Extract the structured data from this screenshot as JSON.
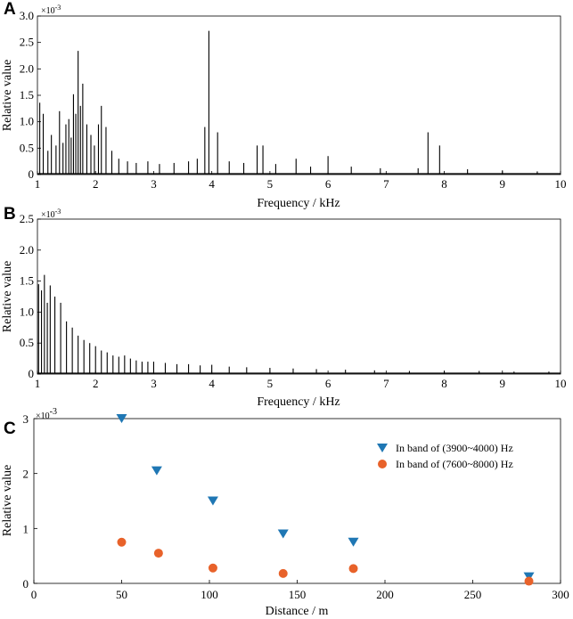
{
  "chart_data": [
    {
      "panel": "A",
      "type": "line",
      "xlabel": "Frequency / kHz",
      "ylabel": "Relative value",
      "y_exponent_label": "×10",
      "y_exponent_power": "-3",
      "xlim": [
        1,
        10
      ],
      "ylim": [
        0,
        3.0
      ],
      "xticks": [
        "1",
        "2",
        "3",
        "4",
        "5",
        "6",
        "7",
        "8",
        "9",
        "10"
      ],
      "yticks": [
        "0",
        "0.5",
        "1.0",
        "1.5",
        "2.0",
        "2.5",
        "3.0"
      ],
      "grid": false,
      "spikes": [
        {
          "f": 1.04,
          "v": 1.36
        },
        {
          "f": 1.1,
          "v": 1.15
        },
        {
          "f": 1.18,
          "v": 0.45
        },
        {
          "f": 1.24,
          "v": 0.75
        },
        {
          "f": 1.32,
          "v": 0.55
        },
        {
          "f": 1.38,
          "v": 1.2
        },
        {
          "f": 1.44,
          "v": 0.6
        },
        {
          "f": 1.49,
          "v": 0.95
        },
        {
          "f": 1.54,
          "v": 1.05
        },
        {
          "f": 1.58,
          "v": 0.7
        },
        {
          "f": 1.62,
          "v": 1.52
        },
        {
          "f": 1.66,
          "v": 1.15
        },
        {
          "f": 1.7,
          "v": 2.34
        },
        {
          "f": 1.74,
          "v": 1.3
        },
        {
          "f": 1.78,
          "v": 1.72
        },
        {
          "f": 1.85,
          "v": 0.95
        },
        {
          "f": 1.92,
          "v": 0.75
        },
        {
          "f": 1.98,
          "v": 0.55
        },
        {
          "f": 2.05,
          "v": 0.95
        },
        {
          "f": 2.1,
          "v": 1.3
        },
        {
          "f": 2.18,
          "v": 0.9
        },
        {
          "f": 2.28,
          "v": 0.45
        },
        {
          "f": 2.4,
          "v": 0.3
        },
        {
          "f": 2.55,
          "v": 0.25
        },
        {
          "f": 2.7,
          "v": 0.22
        },
        {
          "f": 2.9,
          "v": 0.25
        },
        {
          "f": 3.1,
          "v": 0.2
        },
        {
          "f": 3.35,
          "v": 0.22
        },
        {
          "f": 3.6,
          "v": 0.25
        },
        {
          "f": 3.75,
          "v": 0.3
        },
        {
          "f": 3.88,
          "v": 0.9
        },
        {
          "f": 3.95,
          "v": 2.72
        },
        {
          "f": 4.1,
          "v": 0.8
        },
        {
          "f": 4.3,
          "v": 0.25
        },
        {
          "f": 4.55,
          "v": 0.22
        },
        {
          "f": 4.78,
          "v": 0.55
        },
        {
          "f": 4.88,
          "v": 0.55
        },
        {
          "f": 5.1,
          "v": 0.2
        },
        {
          "f": 5.45,
          "v": 0.3
        },
        {
          "f": 5.7,
          "v": 0.15
        },
        {
          "f": 6.0,
          "v": 0.35
        },
        {
          "f": 6.4,
          "v": 0.15
        },
        {
          "f": 6.9,
          "v": 0.12
        },
        {
          "f": 7.55,
          "v": 0.12
        },
        {
          "f": 7.72,
          "v": 0.8
        },
        {
          "f": 7.92,
          "v": 0.55
        },
        {
          "f": 8.4,
          "v": 0.1
        },
        {
          "f": 9.0,
          "v": 0.08
        },
        {
          "f": 9.6,
          "v": 0.06
        }
      ]
    },
    {
      "panel": "B",
      "type": "line",
      "xlabel": "Frequency / kHz",
      "ylabel": "Relative value",
      "y_exponent_label": "×10",
      "y_exponent_power": "-3",
      "xlim": [
        1,
        10
      ],
      "ylim": [
        0,
        2.5
      ],
      "xticks": [
        "1",
        "2",
        "3",
        "4",
        "5",
        "6",
        "7",
        "8",
        "9",
        "10"
      ],
      "yticks": [
        "0",
        "0.5",
        "1.0",
        "1.5",
        "2.0",
        "2.5"
      ],
      "grid": false,
      "spikes": [
        {
          "f": 1.02,
          "v": 1.45
        },
        {
          "f": 1.07,
          "v": 1.35
        },
        {
          "f": 1.12,
          "v": 1.6
        },
        {
          "f": 1.17,
          "v": 1.15
        },
        {
          "f": 1.22,
          "v": 1.43
        },
        {
          "f": 1.3,
          "v": 1.25
        },
        {
          "f": 1.4,
          "v": 1.15
        },
        {
          "f": 1.5,
          "v": 0.85
        },
        {
          "f": 1.6,
          "v": 0.75
        },
        {
          "f": 1.7,
          "v": 0.62
        },
        {
          "f": 1.8,
          "v": 0.55
        },
        {
          "f": 1.9,
          "v": 0.5
        },
        {
          "f": 2.0,
          "v": 0.45
        },
        {
          "f": 2.1,
          "v": 0.38
        },
        {
          "f": 2.2,
          "v": 0.35
        },
        {
          "f": 2.3,
          "v": 0.3
        },
        {
          "f": 2.4,
          "v": 0.28
        },
        {
          "f": 2.5,
          "v": 0.3
        },
        {
          "f": 2.6,
          "v": 0.25
        },
        {
          "f": 2.7,
          "v": 0.22
        },
        {
          "f": 2.8,
          "v": 0.2
        },
        {
          "f": 2.9,
          "v": 0.2
        },
        {
          "f": 3.0,
          "v": 0.2
        },
        {
          "f": 3.2,
          "v": 0.18
        },
        {
          "f": 3.4,
          "v": 0.16
        },
        {
          "f": 3.6,
          "v": 0.16
        },
        {
          "f": 3.8,
          "v": 0.14
        },
        {
          "f": 4.0,
          "v": 0.15
        },
        {
          "f": 4.3,
          "v": 0.12
        },
        {
          "f": 4.6,
          "v": 0.11
        },
        {
          "f": 5.0,
          "v": 0.1
        },
        {
          "f": 5.4,
          "v": 0.09
        },
        {
          "f": 5.8,
          "v": 0.08
        },
        {
          "f": 6.3,
          "v": 0.07
        },
        {
          "f": 6.8,
          "v": 0.06
        },
        {
          "f": 7.4,
          "v": 0.05
        },
        {
          "f": 8.0,
          "v": 0.05
        },
        {
          "f": 8.6,
          "v": 0.05
        },
        {
          "f": 9.2,
          "v": 0.04
        },
        {
          "f": 9.8,
          "v": 0.04
        }
      ]
    },
    {
      "panel": "C",
      "type": "scatter",
      "xlabel": "Distance / m",
      "ylabel": "Relative value",
      "y_exponent_label": "×10",
      "y_exponent_power": "-3",
      "xlim": [
        0,
        300
      ],
      "ylim": [
        0,
        3
      ],
      "xticks": [
        "0",
        "50",
        "100",
        "150",
        "200",
        "250",
        "300"
      ],
      "yticks": [
        "0",
        "1",
        "2",
        "3"
      ],
      "grid": false,
      "legend_position": "top-right",
      "series": [
        {
          "name": "In band of (3900~4000) Hz",
          "marker": "triangle-down",
          "color": "#1f77b4",
          "points": [
            [
              50,
              3.0
            ],
            [
              70,
              2.05
            ],
            [
              102,
              1.5
            ],
            [
              142,
              0.9
            ],
            [
              182,
              0.75
            ],
            [
              282,
              0.12
            ]
          ]
        },
        {
          "name": "In band of (7600~8000) Hz",
          "marker": "circle",
          "color": "#e8622a",
          "points": [
            [
              50,
              0.75
            ],
            [
              71,
              0.55
            ],
            [
              102,
              0.28
            ],
            [
              142,
              0.18
            ],
            [
              182,
              0.27
            ],
            [
              282,
              0.04
            ]
          ]
        }
      ]
    }
  ]
}
